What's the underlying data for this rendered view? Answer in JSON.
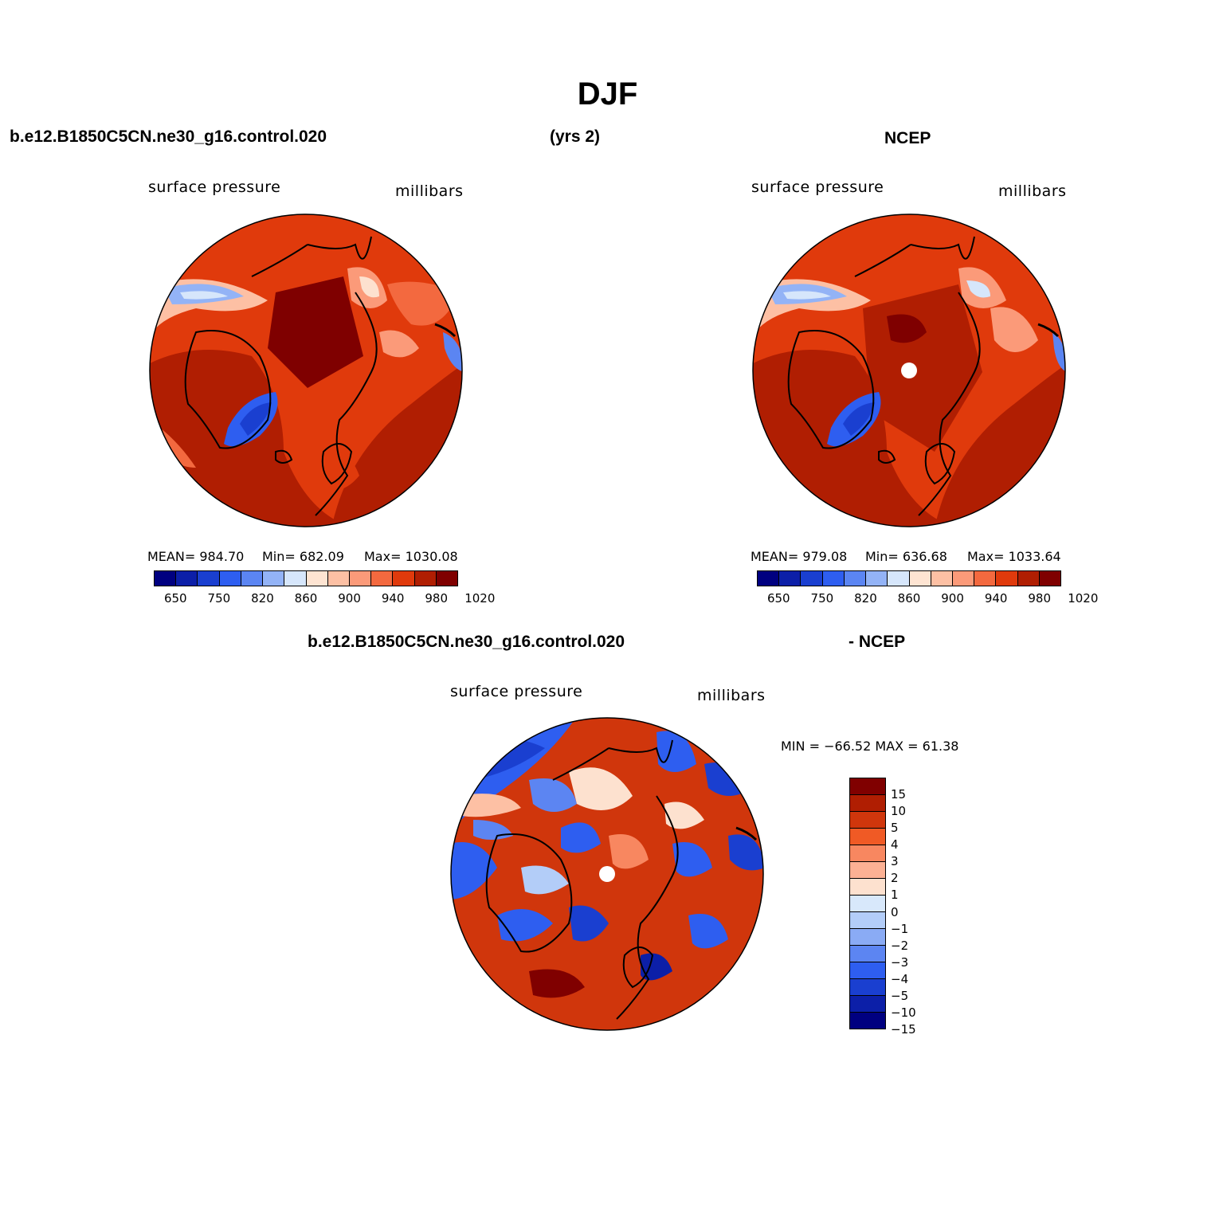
{
  "title": "DJF",
  "panels": {
    "model": {
      "case_name": "b.e12.B1850C5CN.ne30_g16.control.020",
      "years": "(yrs 2)",
      "left_label": "surface pressure",
      "right_label": "millibars",
      "stats": {
        "mean": "MEAN= 984.70",
        "min": "Min= 682.09",
        "max": "Max= 1030.08"
      }
    },
    "obs": {
      "source": "NCEP",
      "left_label": "surface pressure",
      "right_label": "millibars",
      "stats": {
        "mean": "MEAN= 979.08",
        "min": "Min= 636.68",
        "max": "Max= 1033.64"
      }
    },
    "diff": {
      "case_name": "b.e12.B1850C5CN.ne30_g16.control.020",
      "minus_label": "- NCEP",
      "left_label": "surface pressure",
      "right_label": "millibars",
      "minmax": "MIN = −66.52 MAX =   61.38"
    }
  },
  "colorbars": {
    "absolute": {
      "colors": [
        "#000080",
        "#0c1fa8",
        "#1a3fd0",
        "#2e5ef0",
        "#5b85f2",
        "#93b3f6",
        "#d6e6fb",
        "#fee4d2",
        "#fdc0a4",
        "#fb9a79",
        "#f3693f",
        "#e03a0c",
        "#b01e02",
        "#7f0000"
      ],
      "tick_labels": [
        "650",
        "750",
        "820",
        "860",
        "900",
        "940",
        "980",
        "1020"
      ]
    },
    "difference": {
      "colors": [
        "#800000",
        "#b01e02",
        "#d0360c",
        "#f05a25",
        "#f88760",
        "#fcb194",
        "#fde1cf",
        "#d8e8fb",
        "#b3cdf8",
        "#8aabf5",
        "#5c85f2",
        "#2e5ef0",
        "#1a3fd0",
        "#0c1fa8",
        "#000080"
      ],
      "tick_labels": [
        "15",
        "10",
        "5",
        "4",
        "3",
        "2",
        "1",
        "0",
        "−1",
        "−2",
        "−3",
        "−4",
        "−5",
        "−10",
        "−15"
      ]
    }
  }
}
